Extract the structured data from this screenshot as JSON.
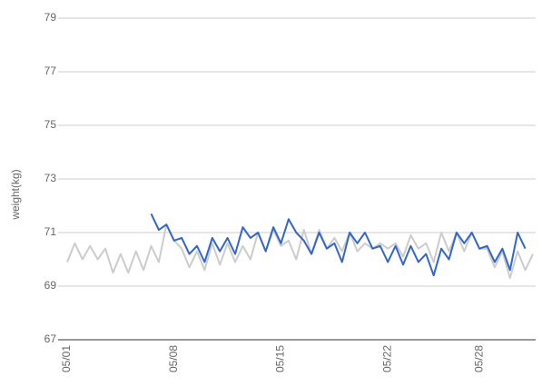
{
  "chart_data": {
    "type": "line",
    "y_label": "weight(kg)",
    "categories": [
      "05/01",
      null,
      null,
      null,
      null,
      null,
      null,
      null,
      null,
      null,
      null,
      null,
      null,
      null,
      "05/08",
      null,
      null,
      null,
      null,
      null,
      null,
      null,
      null,
      null,
      null,
      null,
      null,
      null,
      "05/15",
      null,
      null,
      null,
      null,
      null,
      null,
      null,
      null,
      null,
      null,
      null,
      null,
      null,
      "05/22",
      null,
      null,
      null,
      null,
      null,
      null,
      null,
      null,
      null,
      null,
      null,
      "05/28",
      null,
      null,
      null,
      null,
      null,
      null,
      null
    ],
    "series": [
      {
        "color": "#cccccc",
        "values": [
          69.9,
          70.6,
          70.0,
          70.5,
          70.0,
          70.4,
          69.5,
          70.2,
          69.5,
          70.3,
          69.6,
          70.5,
          69.9,
          71.3,
          70.7,
          70.4,
          69.7,
          70.3,
          69.6,
          70.6,
          69.8,
          70.6,
          69.9,
          70.5,
          70.0,
          71.0,
          70.3,
          71.1,
          70.5,
          70.7,
          70.0,
          71.1,
          70.2,
          71.1,
          70.4,
          70.8,
          70.3,
          71.0,
          70.3,
          70.6,
          70.4,
          70.6,
          70.4,
          70.6,
          70.1,
          70.9,
          70.4,
          70.6,
          69.9,
          71.0,
          70.3,
          71.0,
          70.3,
          71.0,
          70.4,
          70.4,
          69.7,
          70.3,
          69.3,
          70.3,
          69.6,
          70.2
        ]
      },
      {
        "color": "#3366cc",
        "values": [
          null,
          null,
          null,
          null,
          null,
          null,
          null,
          null,
          null,
          null,
          null,
          71.7,
          71.1,
          71.3,
          70.7,
          70.8,
          70.2,
          70.5,
          69.9,
          70.8,
          70.3,
          70.8,
          70.2,
          71.2,
          70.8,
          71.0,
          70.3,
          71.2,
          70.6,
          71.5,
          71.0,
          70.7,
          70.2,
          71.0,
          70.4,
          70.6,
          69.9,
          71.0,
          70.6,
          71.0,
          70.4,
          70.5,
          69.9,
          70.5,
          69.8,
          70.5,
          69.9,
          70.2,
          69.4,
          70.4,
          70.0,
          71.0,
          70.6,
          71.0,
          70.4,
          70.5,
          69.9,
          70.4,
          69.6,
          71.0,
          70.4,
          null
        ]
      }
    ],
    "ylim": [
      67,
      79
    ],
    "yticks": [
      67,
      69,
      71,
      73,
      75,
      77,
      79
    ],
    "grid": true
  }
}
